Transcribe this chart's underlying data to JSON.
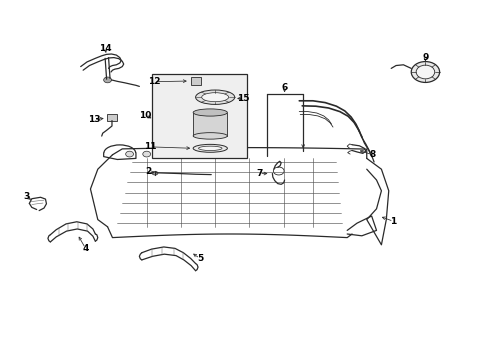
{
  "background_color": "#ffffff",
  "line_color": "#2a2a2a",
  "figsize": [
    4.89,
    3.6
  ],
  "dpi": 100,
  "tank_outline_x": [
    0.22,
    0.26,
    0.3,
    0.34,
    0.38,
    0.42,
    0.46,
    0.5,
    0.54,
    0.58,
    0.62,
    0.66,
    0.7,
    0.73,
    0.745,
    0.755,
    0.76,
    0.755,
    0.745,
    0.73,
    0.7,
    0.68,
    0.66,
    0.64,
    0.62,
    0.58,
    0.54,
    0.5,
    0.46,
    0.42,
    0.38,
    0.34,
    0.3,
    0.26,
    0.22
  ],
  "tank_outline_y": [
    0.565,
    0.575,
    0.582,
    0.587,
    0.59,
    0.59,
    0.588,
    0.585,
    0.582,
    0.578,
    0.572,
    0.563,
    0.55,
    0.535,
    0.515,
    0.49,
    0.46,
    0.432,
    0.415,
    0.4,
    0.388,
    0.38,
    0.372,
    0.365,
    0.358,
    0.35,
    0.345,
    0.342,
    0.345,
    0.35,
    0.358,
    0.368,
    0.382,
    0.435,
    0.49
  ]
}
